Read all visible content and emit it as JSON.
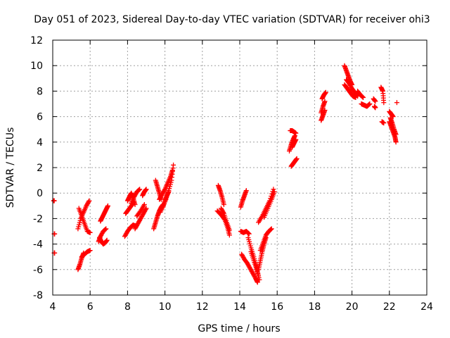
{
  "chart_data": {
    "type": "scatter",
    "title": "Day 051 of 2023, Sidereal Day-to-day VTEC variation (SDTVAR) for receiver ohi3",
    "xlabel": "GPS time / hours",
    "ylabel": "SDTVAR / TECUs",
    "xlim": [
      4,
      24
    ],
    "ylim": [
      -8,
      12
    ],
    "xticks": [
      "4",
      "6",
      "8",
      "10",
      "12",
      "14",
      "16",
      "18",
      "20",
      "22",
      "24"
    ],
    "yticks": [
      "-8",
      "-6",
      "-4",
      "-2",
      "0",
      "2",
      "4",
      "6",
      "8",
      "10",
      "12"
    ],
    "grid": true,
    "marker": "+",
    "color": "#ff0000",
    "segments": [
      {
        "x": [
          4.05,
          4.08
        ],
        "y": [
          -0.6,
          -0.6
        ]
      },
      {
        "x": [
          4.08,
          4.1
        ],
        "y": [
          -3.2,
          -3.2
        ]
      },
      {
        "x": [
          4.08,
          4.1
        ],
        "y": [
          -4.7,
          -4.7
        ]
      },
      {
        "x": [
          5.35,
          5.5,
          5.65,
          5.8,
          5.95
        ],
        "y": [
          -2.8,
          -2.0,
          -1.5,
          -1.0,
          -0.6
        ]
      },
      {
        "x": [
          5.4,
          5.55,
          5.7,
          5.85,
          6.0
        ],
        "y": [
          -1.2,
          -1.8,
          -2.4,
          -3.0,
          -3.1
        ]
      },
      {
        "x": [
          5.35,
          5.45,
          5.55,
          5.65
        ],
        "y": [
          -6.0,
          -5.6,
          -5.1,
          -4.7
        ]
      },
      {
        "x": [
          5.55,
          5.7,
          5.85,
          6.0
        ],
        "y": [
          -5.0,
          -4.8,
          -4.6,
          -4.5
        ]
      },
      {
        "x": [
          6.45,
          6.55,
          6.7,
          6.85
        ],
        "y": [
          -3.8,
          -3.4,
          -3.0,
          -2.8
        ]
      },
      {
        "x": [
          6.5,
          6.6,
          6.7,
          6.8,
          6.9
        ],
        "y": [
          -3.5,
          -3.8,
          -4.0,
          -3.9,
          -3.7
        ]
      },
      {
        "x": [
          6.55,
          6.65,
          6.75,
          6.85,
          6.95
        ],
        "y": [
          -2.2,
          -1.9,
          -1.6,
          -1.3,
          -1.0
        ]
      },
      {
        "x": [
          7.85,
          8.0,
          8.15,
          8.3,
          8.45
        ],
        "y": [
          -3.4,
          -3.0,
          -2.7,
          -2.5,
          -2.6
        ]
      },
      {
        "x": [
          7.9,
          8.05,
          8.2,
          8.35
        ],
        "y": [
          -1.6,
          -1.3,
          -1.0,
          -0.7
        ]
      },
      {
        "x": [
          8.0,
          8.1,
          8.2,
          8.3,
          8.4
        ],
        "y": [
          -0.6,
          -0.3,
          0.0,
          -0.4,
          -0.9
        ]
      },
      {
        "x": [
          8.2,
          8.35,
          8.5,
          8.65
        ],
        "y": [
          -0.8,
          -0.3,
          0.1,
          0.3
        ]
      },
      {
        "x": [
          8.4,
          8.55,
          8.7,
          8.85,
          9.0
        ],
        "y": [
          -2.8,
          -2.4,
          -2.0,
          -1.6,
          -1.2
        ]
      },
      {
        "x": [
          8.5,
          8.7,
          8.9
        ],
        "y": [
          -1.8,
          -1.4,
          -0.9
        ]
      },
      {
        "x": [
          8.8,
          8.9,
          9.0
        ],
        "y": [
          -0.2,
          0.1,
          0.3
        ]
      },
      {
        "x": [
          9.4,
          9.5,
          9.6,
          9.7,
          9.8,
          9.9
        ],
        "y": [
          -2.8,
          -2.3,
          -1.8,
          -1.4,
          -1.1,
          -0.9
        ]
      },
      {
        "x": [
          9.5,
          9.6,
          9.7,
          9.8
        ],
        "y": [
          1.0,
          0.5,
          0.0,
          -0.5
        ]
      },
      {
        "x": [
          9.7,
          9.85,
          10.0,
          10.15,
          10.3,
          10.4
        ],
        "y": [
          -0.5,
          -0.1,
          0.3,
          0.8,
          1.3,
          1.8
        ]
      },
      {
        "x": [
          9.75,
          9.9,
          10.05,
          10.2,
          10.35,
          10.45
        ],
        "y": [
          -1.5,
          -1.0,
          -0.5,
          0.2,
          1.0,
          2.2
        ]
      },
      {
        "x": [
          9.9,
          10.0,
          10.1,
          10.2
        ],
        "y": [
          -1.1,
          -0.6,
          -0.2,
          0.1
        ]
      },
      {
        "x": [
          12.85,
          12.95,
          13.05,
          13.15
        ],
        "y": [
          0.6,
          0.2,
          -0.3,
          -0.9
        ]
      },
      {
        "x": [
          12.8,
          13.0,
          13.2,
          13.35,
          13.45
        ],
        "y": [
          -1.4,
          -1.7,
          -2.1,
          -2.7,
          -3.3
        ]
      },
      {
        "x": [
          13.0,
          13.15,
          13.3,
          13.45
        ],
        "y": [
          -1.2,
          -1.6,
          -2.3,
          -2.9
        ]
      },
      {
        "x": [
          14.05,
          14.15,
          14.25,
          14.35
        ],
        "y": [
          -1.1,
          -0.6,
          -0.2,
          0.2
        ]
      },
      {
        "x": [
          14.05,
          14.2,
          14.35,
          14.5
        ],
        "y": [
          -3.0,
          -3.1,
          -3.0,
          -3.2
        ]
      },
      {
        "x": [
          14.1,
          14.25,
          14.4,
          14.55,
          14.7,
          14.85,
          14.95
        ],
        "y": [
          -4.8,
          -5.2,
          -5.5,
          -5.9,
          -6.3,
          -6.7,
          -7.0
        ]
      },
      {
        "x": [
          14.45,
          14.6,
          14.75,
          14.9,
          15.0
        ],
        "y": [
          -3.5,
          -4.3,
          -5.0,
          -5.8,
          -6.5
        ]
      },
      {
        "x": [
          14.6,
          14.75,
          14.9,
          15.05
        ],
        "y": [
          -4.6,
          -5.3,
          -6.0,
          -6.8
        ]
      },
      {
        "x": [
          15.0,
          15.1,
          15.2,
          15.3,
          15.4
        ],
        "y": [
          -6.0,
          -5.3,
          -4.6,
          -4.0,
          -3.5
        ]
      },
      {
        "x": [
          15.1,
          15.25,
          15.4,
          15.55,
          15.7
        ],
        "y": [
          -4.5,
          -3.9,
          -3.3,
          -3.0,
          -2.8
        ]
      },
      {
        "x": [
          15.0,
          15.2,
          15.4,
          15.6,
          15.8
        ],
        "y": [
          -2.3,
          -1.8,
          -1.2,
          -0.6,
          0.3
        ]
      },
      {
        "x": [
          15.3,
          15.5,
          15.7,
          15.85
        ],
        "y": [
          -1.9,
          -1.2,
          -0.5,
          0.1
        ]
      },
      {
        "x": [
          16.65,
          16.75,
          16.85,
          16.95
        ],
        "y": [
          3.3,
          3.8,
          4.2,
          4.5
        ]
      },
      {
        "x": [
          16.7,
          16.8,
          16.9,
          17.0
        ],
        "y": [
          4.9,
          4.9,
          4.8,
          4.7
        ]
      },
      {
        "x": [
          16.75,
          16.85,
          16.95,
          17.05
        ],
        "y": [
          2.1,
          2.3,
          2.5,
          2.7
        ]
      },
      {
        "x": [
          16.8,
          16.9,
          17.0
        ],
        "y": [
          3.6,
          3.9,
          4.2
        ]
      },
      {
        "x": [
          18.35,
          18.45,
          18.55
        ],
        "y": [
          5.7,
          6.1,
          6.5
        ]
      },
      {
        "x": [
          18.35,
          18.45,
          18.55
        ],
        "y": [
          6.3,
          6.8,
          7.2
        ]
      },
      {
        "x": [
          18.4,
          18.5,
          18.6
        ],
        "y": [
          7.4,
          7.7,
          7.9
        ]
      },
      {
        "x": [
          19.6,
          19.7,
          19.8,
          19.9,
          20.0
        ],
        "y": [
          10.0,
          9.6,
          9.2,
          8.8,
          8.5
        ]
      },
      {
        "x": [
          19.6,
          19.75,
          19.9,
          20.05,
          20.2
        ],
        "y": [
          8.5,
          8.2,
          7.9,
          7.6,
          7.5
        ]
      },
      {
        "x": [
          19.7,
          19.85,
          20.0,
          20.15,
          20.3
        ],
        "y": [
          8.9,
          8.6,
          8.2,
          7.9,
          7.6
        ]
      },
      {
        "x": [
          20.3,
          20.45,
          20.6
        ],
        "y": [
          8.0,
          7.7,
          7.5
        ]
      },
      {
        "x": [
          20.5,
          20.65,
          20.8,
          20.95
        ],
        "y": [
          7.0,
          6.9,
          6.8,
          7.0
        ]
      },
      {
        "x": [
          21.15,
          21.25
        ],
        "y": [
          7.4,
          7.2
        ]
      },
      {
        "x": [
          21.2,
          21.25
        ],
        "y": [
          6.8,
          6.7
        ]
      },
      {
        "x": [
          21.55,
          21.65,
          21.7
        ],
        "y": [
          8.3,
          8.0,
          7.1
        ]
      },
      {
        "x": [
          21.6,
          21.7
        ],
        "y": [
          5.6,
          5.5
        ]
      },
      {
        "x": [
          22.0,
          22.1,
          22.2
        ],
        "y": [
          6.4,
          6.2,
          6.0
        ]
      },
      {
        "x": [
          22.0,
          22.1,
          22.2,
          22.3,
          22.35
        ],
        "y": [
          5.6,
          5.2,
          4.8,
          4.4,
          4.0
        ]
      },
      {
        "x": [
          22.05,
          22.15,
          22.25,
          22.35
        ],
        "y": [
          5.9,
          5.5,
          5.0,
          4.6
        ]
      },
      {
        "x": [
          22.4
        ],
        "y": [
          7.1
        ]
      }
    ]
  }
}
